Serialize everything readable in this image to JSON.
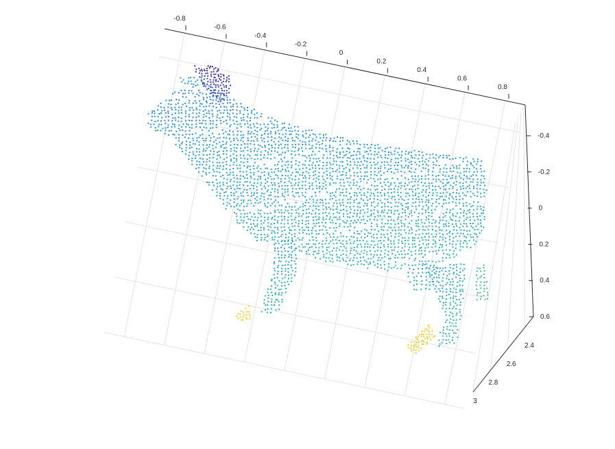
{
  "chart_data": {
    "type": "scatter",
    "subtype": "3d-point-cloud",
    "title": "",
    "xlabel": "",
    "ylabel": "",
    "zlabel": "",
    "grid": true,
    "colormap": [
      "#3e26a8",
      "#2a6ef2",
      "#1e9cd6",
      "#2db7a3",
      "#87bf54",
      "#f9d423"
    ],
    "x_axis": {
      "range": [
        -0.9,
        0.9
      ],
      "tick_values": [
        -0.8,
        -0.6,
        -0.4,
        -0.2,
        0,
        0.2,
        0.4,
        0.6,
        0.8
      ],
      "tick_labels": [
        "-0.8",
        "-0.6",
        "-0.4",
        "-0.2",
        "0",
        "0.2",
        "0.4",
        "0.6",
        "0.8"
      ]
    },
    "y_axis": {
      "range": [
        2.3,
        3.0
      ],
      "tick_values": [
        2.4,
        2.6,
        2.8,
        3.0
      ],
      "tick_labels": [
        "2.4",
        "2.6",
        "2.8",
        "3"
      ]
    },
    "z_axis": {
      "range": [
        -0.5,
        0.6
      ],
      "reversed": true,
      "tick_values": [
        -0.4,
        -0.2,
        0,
        0.2,
        0.4,
        0.6
      ],
      "tick_labels": [
        "-0.4",
        "-0.2",
        "0",
        "0.2",
        "0.4",
        "0.6"
      ]
    },
    "point_cloud_shape": "cow"
  }
}
